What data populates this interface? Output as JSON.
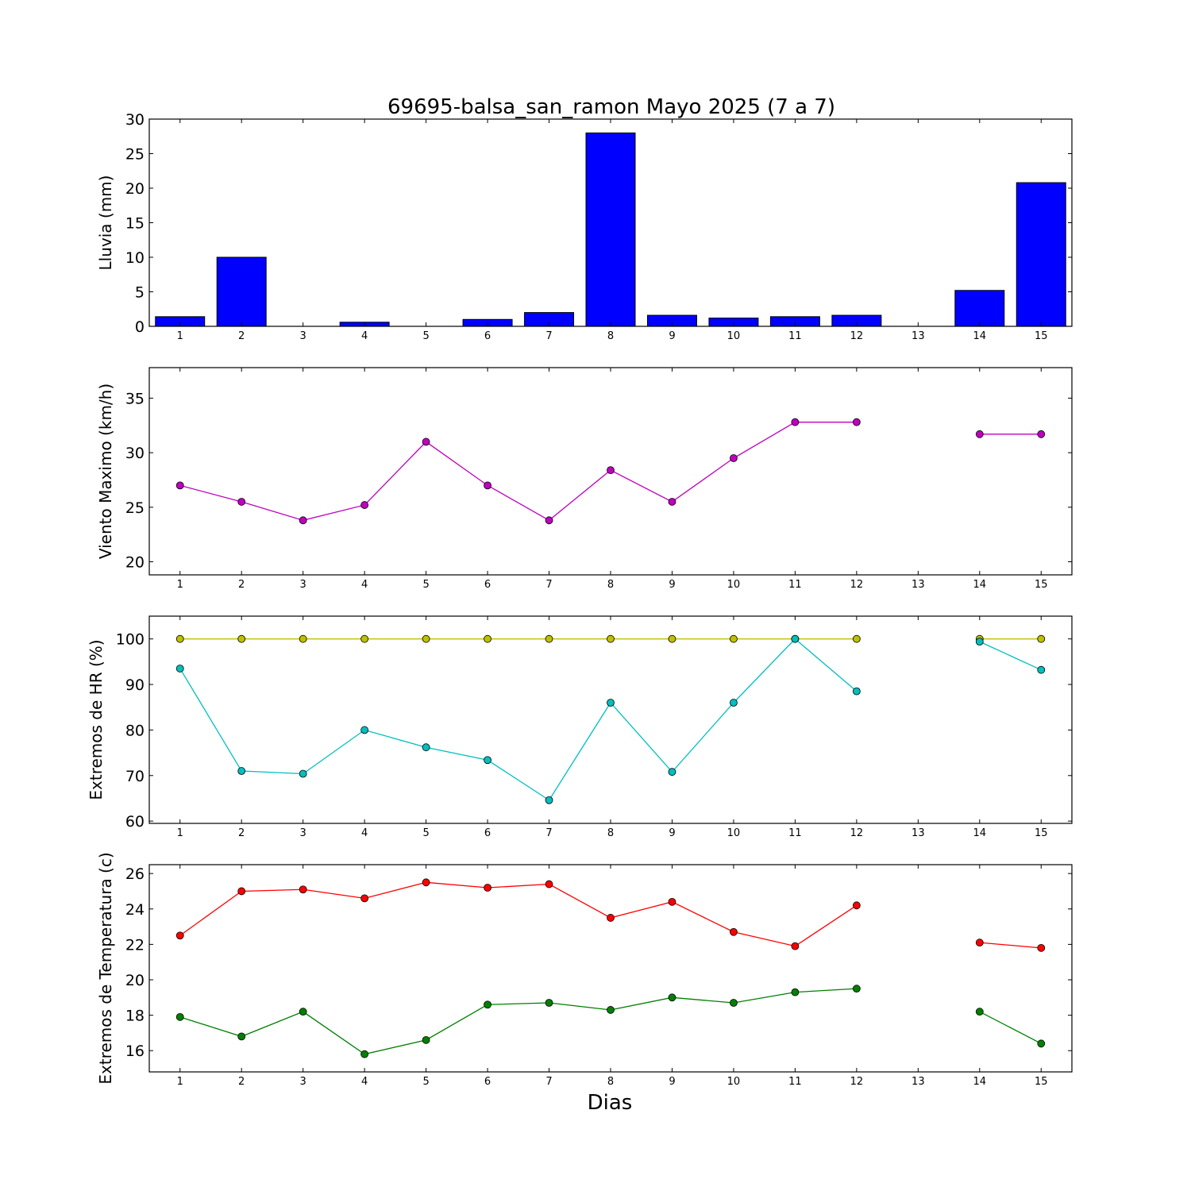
{
  "title": "69695-balsa_san_ramon Mayo 2025  (7 a 7)",
  "xlabel": "Dias",
  "chart_data": [
    {
      "type": "bar",
      "ylabel": "Lluvia (mm)",
      "x": [
        1,
        2,
        3,
        4,
        5,
        6,
        7,
        8,
        9,
        10,
        11,
        12,
        13,
        14,
        15
      ],
      "ylim": [
        0,
        30
      ],
      "yticks": [
        0,
        5,
        10,
        15,
        20,
        25,
        30
      ],
      "series": [
        {
          "color": "#0000ff",
          "values": [
            1.4,
            10.0,
            0,
            0.6,
            0,
            1.0,
            2.0,
            28.0,
            1.6,
            1.2,
            1.4,
            1.6,
            0,
            5.2,
            20.8
          ]
        }
      ]
    },
    {
      "type": "line",
      "ylabel": "Viento Maximo (km/h)",
      "x": [
        1,
        2,
        3,
        4,
        5,
        6,
        7,
        8,
        9,
        10,
        11,
        12,
        13,
        14,
        15
      ],
      "ylim": [
        18.8,
        37.8
      ],
      "yticks": [
        20,
        25,
        30,
        35
      ],
      "series": [
        {
          "color": "#bf00bf",
          "values": [
            27.0,
            25.5,
            23.8,
            25.2,
            31.0,
            27.0,
            23.8,
            28.4,
            25.5,
            29.5,
            32.8,
            32.8,
            null,
            31.7,
            31.7
          ]
        }
      ]
    },
    {
      "type": "line",
      "ylabel": "Extremos de HR (%)",
      "x": [
        1,
        2,
        3,
        4,
        5,
        6,
        7,
        8,
        9,
        10,
        11,
        12,
        13,
        14,
        15
      ],
      "ylim": [
        59.5,
        105
      ],
      "yticks": [
        60,
        70,
        80,
        90,
        100
      ],
      "series": [
        {
          "color": "#bfbf00",
          "values": [
            100,
            100,
            100,
            100,
            100,
            100,
            100,
            100,
            100,
            100,
            100,
            100,
            null,
            100,
            100
          ]
        },
        {
          "color": "#00bfbf",
          "values": [
            93.5,
            71.0,
            70.4,
            80.0,
            76.2,
            73.4,
            64.6,
            86.0,
            70.8,
            86.0,
            100,
            88.5,
            null,
            99.4,
            93.2
          ]
        }
      ]
    },
    {
      "type": "line",
      "ylabel": "Extremos de Temperatura (c)",
      "x": [
        1,
        2,
        3,
        4,
        5,
        6,
        7,
        8,
        9,
        10,
        11,
        12,
        13,
        14,
        15
      ],
      "ylim": [
        14.8,
        26.5
      ],
      "yticks": [
        16,
        18,
        20,
        22,
        24,
        26
      ],
      "series": [
        {
          "color": "#ff0000",
          "values": [
            22.5,
            25.0,
            25.1,
            24.6,
            25.5,
            25.2,
            25.4,
            23.5,
            24.4,
            22.7,
            21.9,
            24.2,
            null,
            22.1,
            21.8
          ]
        },
        {
          "color": "#008000",
          "values": [
            17.9,
            16.8,
            18.2,
            15.8,
            16.6,
            18.6,
            18.7,
            18.3,
            19.0,
            18.7,
            19.3,
            19.5,
            null,
            18.2,
            16.4
          ]
        }
      ]
    }
  ]
}
